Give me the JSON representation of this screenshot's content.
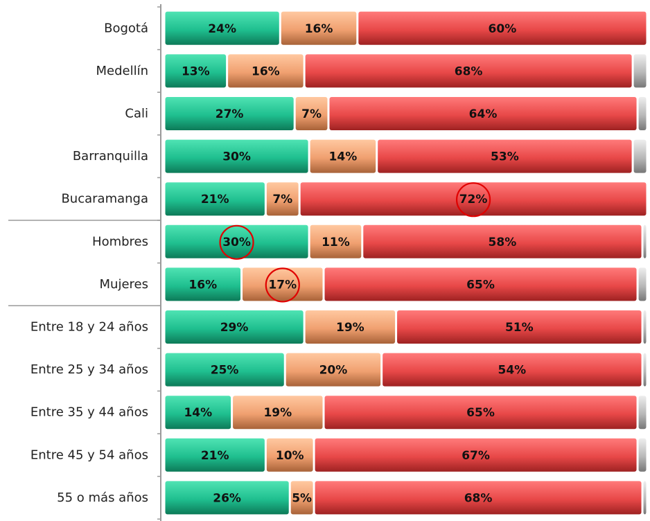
{
  "chart_data": {
    "type": "bar",
    "orientation": "horizontal",
    "stacked": true,
    "categories": [
      "Bogotá",
      "Medellín",
      "Cali",
      "Barranquilla",
      "Bucaramanga",
      "Hombres",
      "Mujeres",
      "Entre 18 y 24 años",
      "Entre 25 y 34 años",
      "Entre 35 y 44 años",
      "Entre 45 y 54 años",
      "55 o más años"
    ],
    "series": [
      {
        "color": "#1fbf8f",
        "values": [
          24,
          13,
          27,
          30,
          21,
          30,
          16,
          29,
          25,
          14,
          21,
          26
        ]
      },
      {
        "color": "#f0a070",
        "values": [
          16,
          16,
          7,
          14,
          7,
          11,
          17,
          19,
          20,
          19,
          10,
          5
        ]
      },
      {
        "color": "#e84848",
        "values": [
          60,
          68,
          64,
          53,
          72,
          58,
          65,
          51,
          54,
          65,
          67,
          68
        ]
      },
      {
        "color": "#b8b8b8",
        "values": [
          0,
          3,
          2,
          3,
          0,
          1,
          2,
          1,
          1,
          2,
          2,
          1
        ]
      }
    ],
    "data_labels": [
      [
        "24%",
        "16%",
        "60%",
        ""
      ],
      [
        "13%",
        "16%",
        "68%",
        ""
      ],
      [
        "27%",
        "7%",
        "64%",
        ""
      ],
      [
        "30%",
        "14%",
        "53%",
        ""
      ],
      [
        "21%",
        "7%",
        "72%",
        ""
      ],
      [
        "30%",
        "11%",
        "58%",
        ""
      ],
      [
        "16%",
        "17%",
        "65%",
        ""
      ],
      [
        "29%",
        "19%",
        "51%",
        ""
      ],
      [
        "25%",
        "20%",
        "54%",
        ""
      ],
      [
        "14%",
        "19%",
        "65%",
        ""
      ],
      [
        "21%",
        "10%",
        "67%",
        ""
      ],
      [
        "26%",
        "5%",
        "68%",
        ""
      ]
    ],
    "highlights": [
      {
        "category": "Bucaramanga",
        "series": 2
      },
      {
        "category": "Hombres",
        "series": 0
      },
      {
        "category": "Mujeres",
        "series": 1
      }
    ],
    "group_separators_after": [
      "Bucaramanga",
      "Mujeres"
    ],
    "xlim": [
      0,
      100
    ],
    "title": "",
    "xlabel": "",
    "ylabel": "",
    "legend": "none",
    "grid": false,
    "highlight_color": "#e00000"
  }
}
